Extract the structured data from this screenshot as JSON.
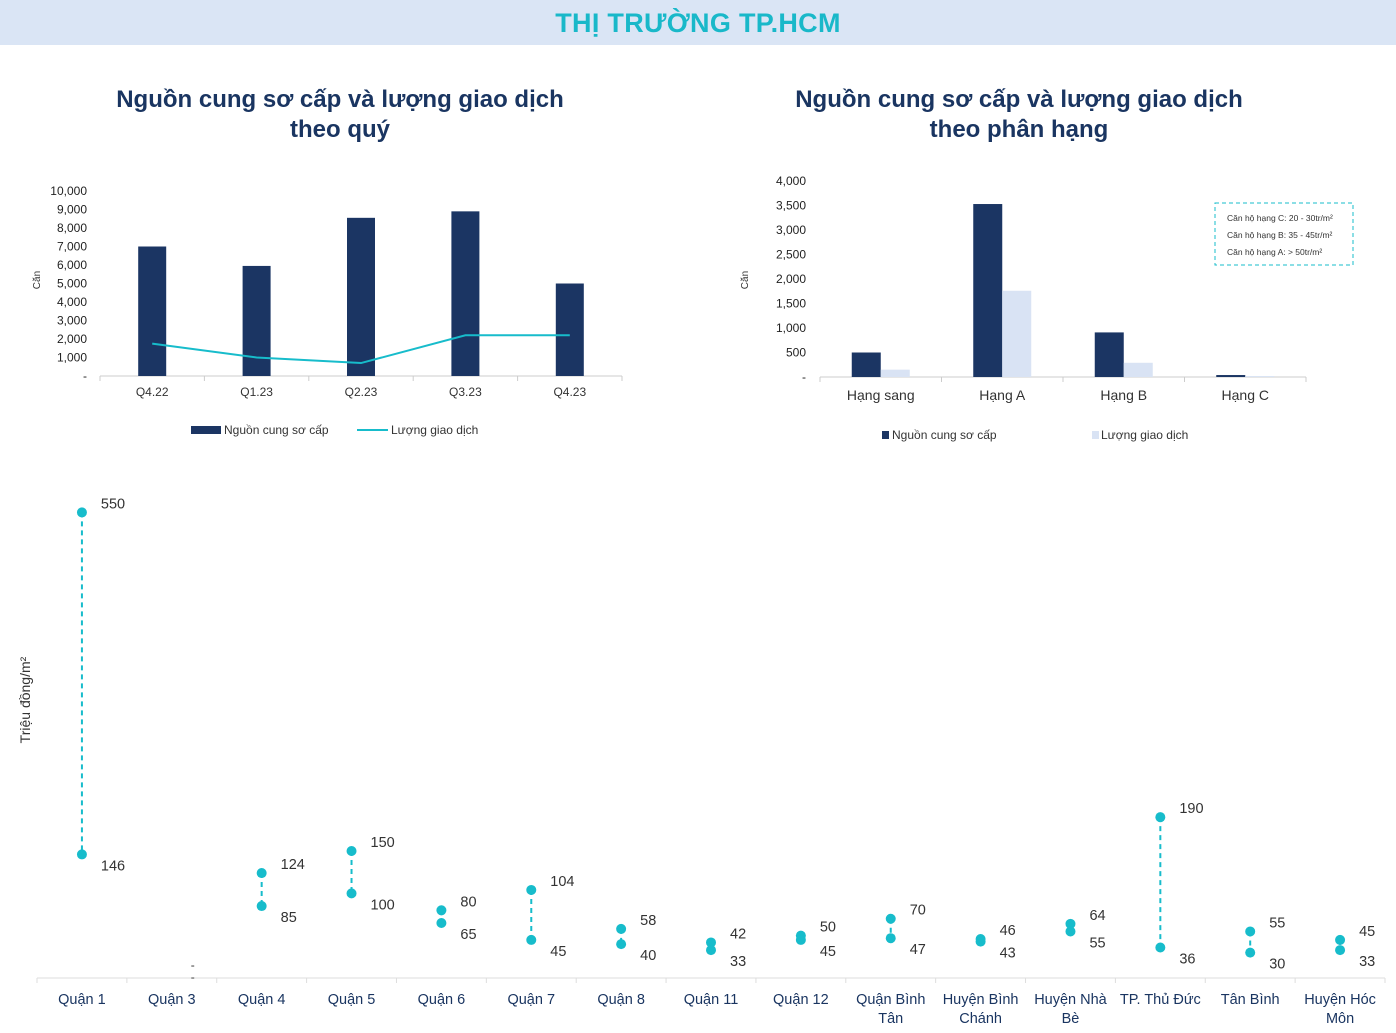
{
  "banner": {
    "title": "THỊ TRƯỜNG TP.HCM"
  },
  "colors": {
    "navy": "#1b3563",
    "teal": "#17bccb",
    "light": "#d9e3f4",
    "banner_bg": "#dae5f5"
  },
  "chart_data": [
    {
      "type": "bar",
      "title_line1": "Nguồn cung sơ cấp và lượng giao dịch",
      "title_line2": "theo quý",
      "ylabel": "Căn",
      "ylim": [
        0,
        10000
      ],
      "yticks": [
        "-",
        "1,000",
        "2,000",
        "3,000",
        "4,000",
        "5,000",
        "6,000",
        "7,000",
        "8,000",
        "9,000",
        "10,000"
      ],
      "categories": [
        "Q4.22",
        "Q1.23",
        "Q2.23",
        "Q3.23",
        "Q4.23"
      ],
      "series": [
        {
          "name": "Nguồn cung sơ cấp",
          "kind": "bar",
          "values": [
            7000,
            5950,
            8550,
            8900,
            5000
          ]
        },
        {
          "name": "Lượng giao dịch",
          "kind": "line",
          "values": [
            1750,
            1000,
            700,
            2200,
            2200
          ]
        }
      ],
      "legend": "bottom"
    },
    {
      "type": "bar",
      "title_line1": "Nguồn cung sơ cấp và lượng giao dịch",
      "title_line2": "theo phân hạng",
      "ylabel": "Căn",
      "ylim": [
        0,
        4000
      ],
      "yticks": [
        "-",
        "500",
        "1,000",
        "1,500",
        "2,000",
        "2,500",
        "3,000",
        "3,500",
        "4,000"
      ],
      "categories": [
        "Hạng sang",
        "Hạng A",
        "Hạng B",
        "Hạng C"
      ],
      "series": [
        {
          "name": "Nguồn cung sơ cấp",
          "values": [
            500,
            3530,
            910,
            40
          ]
        },
        {
          "name": "Lượng giao dịch",
          "values": [
            150,
            1760,
            290,
            20
          ]
        }
      ],
      "annotation": [
        "Căn hộ hạng C: 20 - 30tr/m²",
        "Căn hộ hạng B: 35 - 45tr/m²",
        "Căn hộ hạng A: > 50tr/m²"
      ],
      "legend": "bottom"
    },
    {
      "type": "scatter",
      "subtype": "range-dot",
      "ylabel": "Triệu đồng/m²",
      "ylim": [
        0,
        560
      ],
      "categories": [
        [
          "Quận 1"
        ],
        [
          "Quận 3"
        ],
        [
          "Quận 4"
        ],
        [
          "Quận 5"
        ],
        [
          "Quận 6"
        ],
        [
          "Quận 7"
        ],
        [
          "Quận 8"
        ],
        [
          "Quận 11"
        ],
        [
          "Quận 12"
        ],
        [
          "Quận Bình",
          "Tân"
        ],
        [
          "Huyện Bình",
          "Chánh"
        ],
        [
          "Huyện Nhà",
          "Bè"
        ],
        [
          "TP. Thủ Đức"
        ],
        [
          "Tân Bình"
        ],
        [
          "Huyện Hóc",
          "Môn"
        ]
      ],
      "low": [
        146,
        null,
        85,
        100,
        65,
        45,
        40,
        33,
        45,
        47,
        43,
        55,
        36,
        30,
        33
      ],
      "high": [
        550,
        null,
        124,
        150,
        80,
        104,
        58,
        42,
        50,
        70,
        46,
        64,
        190,
        55,
        45
      ],
      "missing_label": "-"
    }
  ]
}
